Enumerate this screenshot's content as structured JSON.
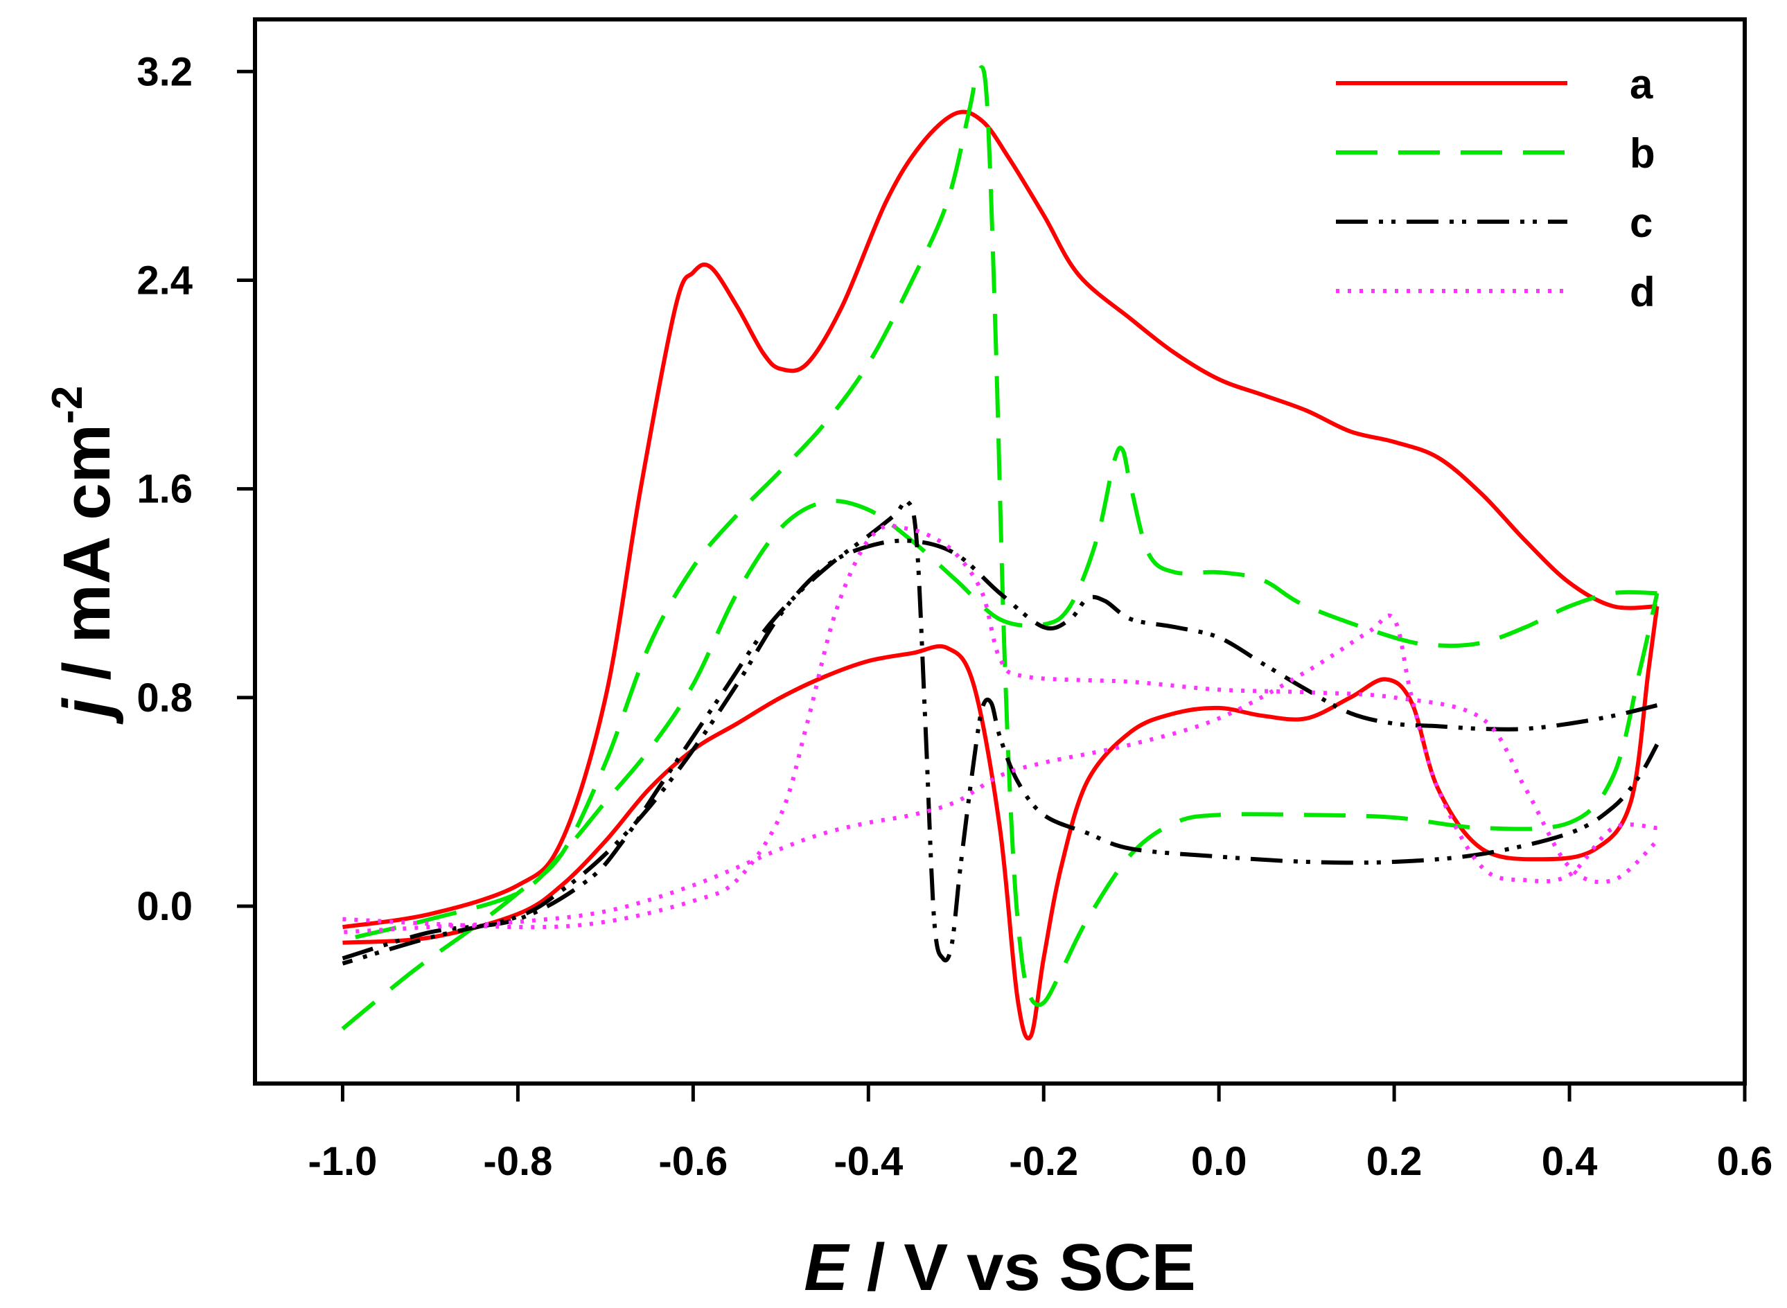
{
  "chart_data": {
    "type": "line",
    "title": "",
    "xlabel": {
      "italic": "E",
      "rest": " / V vs SCE"
    },
    "ylabel": {
      "italic": "j",
      "rest": " / mA cm",
      "sup": "-2"
    },
    "xlim": [
      -1.1,
      0.6
    ],
    "ylim": [
      -0.68,
      3.4
    ],
    "x_ticks": [
      -1.0,
      -0.8,
      -0.6,
      -0.4,
      -0.2,
      0.0,
      0.2,
      0.4,
      0.6
    ],
    "x_tick_labels": [
      "-1.0",
      "-0.8",
      "-0.6",
      "-0.4",
      "-0.2",
      "0.0",
      "0.2",
      "0.4",
      "0.6"
    ],
    "y_ticks": [
      0.0,
      0.8,
      1.6,
      2.4,
      3.2
    ],
    "y_tick_labels": [
      "0.0",
      "0.8",
      "1.6",
      "2.4",
      "3.2"
    ],
    "grid": false,
    "legend_position": "top-right",
    "series": [
      {
        "name": "a",
        "color": "#ff0000",
        "dash": "solid",
        "forward": [
          [
            -1.0,
            -0.08
          ],
          [
            -0.9,
            -0.03
          ],
          [
            -0.8,
            0.08
          ],
          [
            -0.75,
            0.25
          ],
          [
            -0.7,
            0.8
          ],
          [
            -0.66,
            1.6
          ],
          [
            -0.62,
            2.3
          ],
          [
            -0.6,
            2.43
          ],
          [
            -0.58,
            2.45
          ],
          [
            -0.55,
            2.3
          ],
          [
            -0.52,
            2.12
          ],
          [
            -0.5,
            2.06
          ],
          [
            -0.47,
            2.08
          ],
          [
            -0.43,
            2.3
          ],
          [
            -0.38,
            2.7
          ],
          [
            -0.34,
            2.92
          ],
          [
            -0.3,
            3.04
          ],
          [
            -0.27,
            3.01
          ],
          [
            -0.24,
            2.87
          ],
          [
            -0.2,
            2.65
          ],
          [
            -0.16,
            2.42
          ],
          [
            -0.1,
            2.25
          ],
          [
            -0.05,
            2.12
          ],
          [
            0.0,
            2.02
          ],
          [
            0.05,
            1.96
          ],
          [
            0.1,
            1.9
          ],
          [
            0.15,
            1.82
          ],
          [
            0.2,
            1.78
          ],
          [
            0.25,
            1.72
          ],
          [
            0.3,
            1.58
          ],
          [
            0.35,
            1.4
          ],
          [
            0.4,
            1.24
          ],
          [
            0.45,
            1.15
          ],
          [
            0.5,
            1.15
          ]
        ],
        "reverse": [
          [
            0.5,
            1.15
          ],
          [
            0.49,
            0.9
          ],
          [
            0.47,
            0.4
          ],
          [
            0.43,
            0.22
          ],
          [
            0.37,
            0.18
          ],
          [
            0.3,
            0.22
          ],
          [
            0.25,
            0.45
          ],
          [
            0.22,
            0.78
          ],
          [
            0.19,
            0.87
          ],
          [
            0.15,
            0.8
          ],
          [
            0.1,
            0.72
          ],
          [
            0.05,
            0.73
          ],
          [
            0.0,
            0.76
          ],
          [
            -0.05,
            0.74
          ],
          [
            -0.1,
            0.67
          ],
          [
            -0.15,
            0.48
          ],
          [
            -0.18,
            0.15
          ],
          [
            -0.2,
            -0.2
          ],
          [
            -0.215,
            -0.5
          ],
          [
            -0.23,
            -0.35
          ],
          [
            -0.25,
            0.3
          ],
          [
            -0.28,
            0.85
          ],
          [
            -0.31,
            0.99
          ],
          [
            -0.35,
            0.97
          ],
          [
            -0.4,
            0.94
          ],
          [
            -0.45,
            0.88
          ],
          [
            -0.5,
            0.8
          ],
          [
            -0.55,
            0.7
          ],
          [
            -0.6,
            0.6
          ],
          [
            -0.65,
            0.45
          ],
          [
            -0.7,
            0.25
          ],
          [
            -0.75,
            0.08
          ],
          [
            -0.8,
            -0.03
          ],
          [
            -0.9,
            -0.12
          ],
          [
            -1.0,
            -0.14
          ]
        ]
      },
      {
        "name": "b",
        "color": "#00e600",
        "dash": "long-dash",
        "forward": [
          [
            -1.0,
            -0.47
          ],
          [
            -0.92,
            -0.25
          ],
          [
            -0.85,
            -0.08
          ],
          [
            -0.8,
            0.05
          ],
          [
            -0.75,
            0.2
          ],
          [
            -0.7,
            0.55
          ],
          [
            -0.65,
            1.0
          ],
          [
            -0.6,
            1.3
          ],
          [
            -0.55,
            1.5
          ],
          [
            -0.5,
            1.67
          ],
          [
            -0.45,
            1.85
          ],
          [
            -0.4,
            2.08
          ],
          [
            -0.35,
            2.4
          ],
          [
            -0.31,
            2.7
          ],
          [
            -0.285,
            3.05
          ],
          [
            -0.275,
            3.2
          ],
          [
            -0.265,
            3.1
          ],
          [
            -0.255,
            2.2
          ],
          [
            -0.245,
            1.0
          ],
          [
            -0.235,
            0.2
          ],
          [
            -0.225,
            -0.2
          ],
          [
            -0.215,
            -0.35
          ],
          [
            -0.2,
            -0.37
          ],
          [
            -0.18,
            -0.25
          ],
          [
            -0.15,
            -0.05
          ],
          [
            -0.1,
            0.2
          ],
          [
            -0.05,
            0.32
          ],
          [
            0.0,
            0.35
          ],
          [
            0.1,
            0.35
          ],
          [
            0.2,
            0.34
          ],
          [
            0.3,
            0.3
          ],
          [
            0.4,
            0.32
          ],
          [
            0.45,
            0.5
          ],
          [
            0.48,
            0.9
          ],
          [
            0.5,
            1.2
          ]
        ],
        "reverse": [
          [
            0.5,
            1.2
          ],
          [
            0.45,
            1.2
          ],
          [
            0.4,
            1.15
          ],
          [
            0.35,
            1.07
          ],
          [
            0.3,
            1.01
          ],
          [
            0.25,
            1.0
          ],
          [
            0.2,
            1.03
          ],
          [
            0.1,
            1.15
          ],
          [
            0.05,
            1.25
          ],
          [
            0.0,
            1.28
          ],
          [
            -0.05,
            1.28
          ],
          [
            -0.08,
            1.35
          ],
          [
            -0.1,
            1.6
          ],
          [
            -0.11,
            1.75
          ],
          [
            -0.12,
            1.7
          ],
          [
            -0.14,
            1.4
          ],
          [
            -0.17,
            1.15
          ],
          [
            -0.2,
            1.08
          ],
          [
            -0.25,
            1.1
          ],
          [
            -0.3,
            1.25
          ],
          [
            -0.35,
            1.4
          ],
          [
            -0.4,
            1.52
          ],
          [
            -0.45,
            1.55
          ],
          [
            -0.5,
            1.45
          ],
          [
            -0.55,
            1.2
          ],
          [
            -0.6,
            0.85
          ],
          [
            -0.65,
            0.6
          ],
          [
            -0.7,
            0.4
          ],
          [
            -0.75,
            0.2
          ],
          [
            -0.8,
            0.05
          ],
          [
            -0.9,
            -0.05
          ],
          [
            -1.0,
            -0.13
          ]
        ]
      },
      {
        "name": "c",
        "color": "#000000",
        "dash": "dash-dot-dot",
        "forward": [
          [
            -1.0,
            -0.2
          ],
          [
            -0.9,
            -0.1
          ],
          [
            -0.8,
            -0.05
          ],
          [
            -0.72,
            0.1
          ],
          [
            -0.68,
            0.25
          ],
          [
            -0.64,
            0.45
          ],
          [
            -0.6,
            0.65
          ],
          [
            -0.56,
            0.85
          ],
          [
            -0.52,
            1.05
          ],
          [
            -0.48,
            1.2
          ],
          [
            -0.44,
            1.32
          ],
          [
            -0.4,
            1.42
          ],
          [
            -0.37,
            1.5
          ],
          [
            -0.355,
            1.55
          ],
          [
            -0.345,
            1.4
          ],
          [
            -0.335,
            0.7
          ],
          [
            -0.325,
            -0.05
          ],
          [
            -0.315,
            -0.2
          ],
          [
            -0.305,
            -0.15
          ],
          [
            -0.295,
            0.15
          ],
          [
            -0.28,
            0.55
          ],
          [
            -0.27,
            0.76
          ],
          [
            -0.26,
            0.78
          ],
          [
            -0.25,
            0.65
          ],
          [
            -0.23,
            0.48
          ],
          [
            -0.2,
            0.35
          ],
          [
            -0.15,
            0.28
          ],
          [
            -0.1,
            0.22
          ],
          [
            0.0,
            0.19
          ],
          [
            0.1,
            0.17
          ],
          [
            0.2,
            0.17
          ],
          [
            0.3,
            0.2
          ],
          [
            0.4,
            0.28
          ],
          [
            0.45,
            0.38
          ],
          [
            0.48,
            0.5
          ],
          [
            0.5,
            0.62
          ]
        ],
        "reverse": [
          [
            0.5,
            0.77
          ],
          [
            0.45,
            0.73
          ],
          [
            0.4,
            0.7
          ],
          [
            0.35,
            0.68
          ],
          [
            0.3,
            0.68
          ],
          [
            0.25,
            0.69
          ],
          [
            0.2,
            0.7
          ],
          [
            0.15,
            0.74
          ],
          [
            0.1,
            0.83
          ],
          [
            0.05,
            0.93
          ],
          [
            0.0,
            1.03
          ],
          [
            -0.05,
            1.07
          ],
          [
            -0.1,
            1.1
          ],
          [
            -0.13,
            1.17
          ],
          [
            -0.15,
            1.18
          ],
          [
            -0.17,
            1.1
          ],
          [
            -0.2,
            1.07
          ],
          [
            -0.25,
            1.2
          ],
          [
            -0.3,
            1.35
          ],
          [
            -0.35,
            1.4
          ],
          [
            -0.4,
            1.38
          ],
          [
            -0.45,
            1.3
          ],
          [
            -0.5,
            1.12
          ],
          [
            -0.55,
            0.85
          ],
          [
            -0.6,
            0.6
          ],
          [
            -0.65,
            0.38
          ],
          [
            -0.7,
            0.2
          ],
          [
            -0.75,
            0.06
          ],
          [
            -0.8,
            -0.04
          ],
          [
            -0.9,
            -0.12
          ],
          [
            -1.0,
            -0.22
          ]
        ]
      },
      {
        "name": "d",
        "color": "#ff33ff",
        "dash": "dotted",
        "forward": [
          [
            -1.0,
            -0.05
          ],
          [
            -0.8,
            -0.08
          ],
          [
            -0.7,
            -0.06
          ],
          [
            -0.6,
            0.02
          ],
          [
            -0.55,
            0.1
          ],
          [
            -0.5,
            0.35
          ],
          [
            -0.47,
            0.7
          ],
          [
            -0.44,
            1.1
          ],
          [
            -0.41,
            1.35
          ],
          [
            -0.385,
            1.45
          ],
          [
            -0.36,
            1.45
          ],
          [
            -0.33,
            1.42
          ],
          [
            -0.3,
            1.35
          ],
          [
            -0.27,
            1.2
          ],
          [
            -0.25,
            0.95
          ],
          [
            -0.22,
            0.88
          ],
          [
            -0.1,
            0.86
          ],
          [
            0.0,
            0.83
          ],
          [
            0.1,
            0.82
          ],
          [
            0.2,
            0.8
          ],
          [
            0.3,
            0.72
          ],
          [
            0.35,
            0.45
          ],
          [
            0.4,
            0.15
          ],
          [
            0.45,
            0.1
          ],
          [
            0.5,
            0.25
          ]
        ],
        "reverse": [
          [
            0.5,
            0.3
          ],
          [
            0.45,
            0.3
          ],
          [
            0.4,
            0.12
          ],
          [
            0.35,
            0.1
          ],
          [
            0.3,
            0.15
          ],
          [
            0.25,
            0.45
          ],
          [
            0.22,
            0.8
          ],
          [
            0.2,
            1.1
          ],
          [
            0.17,
            1.05
          ],
          [
            0.1,
            0.9
          ],
          [
            0.0,
            0.72
          ],
          [
            -0.1,
            0.62
          ],
          [
            -0.2,
            0.55
          ],
          [
            -0.25,
            0.5
          ],
          [
            -0.3,
            0.4
          ],
          [
            -0.35,
            0.35
          ],
          [
            -0.4,
            0.32
          ],
          [
            -0.45,
            0.28
          ],
          [
            -0.5,
            0.22
          ],
          [
            -0.6,
            0.08
          ],
          [
            -0.7,
            -0.02
          ],
          [
            -0.8,
            -0.06
          ],
          [
            -0.9,
            -0.08
          ],
          [
            -1.0,
            -0.1
          ]
        ]
      }
    ]
  }
}
